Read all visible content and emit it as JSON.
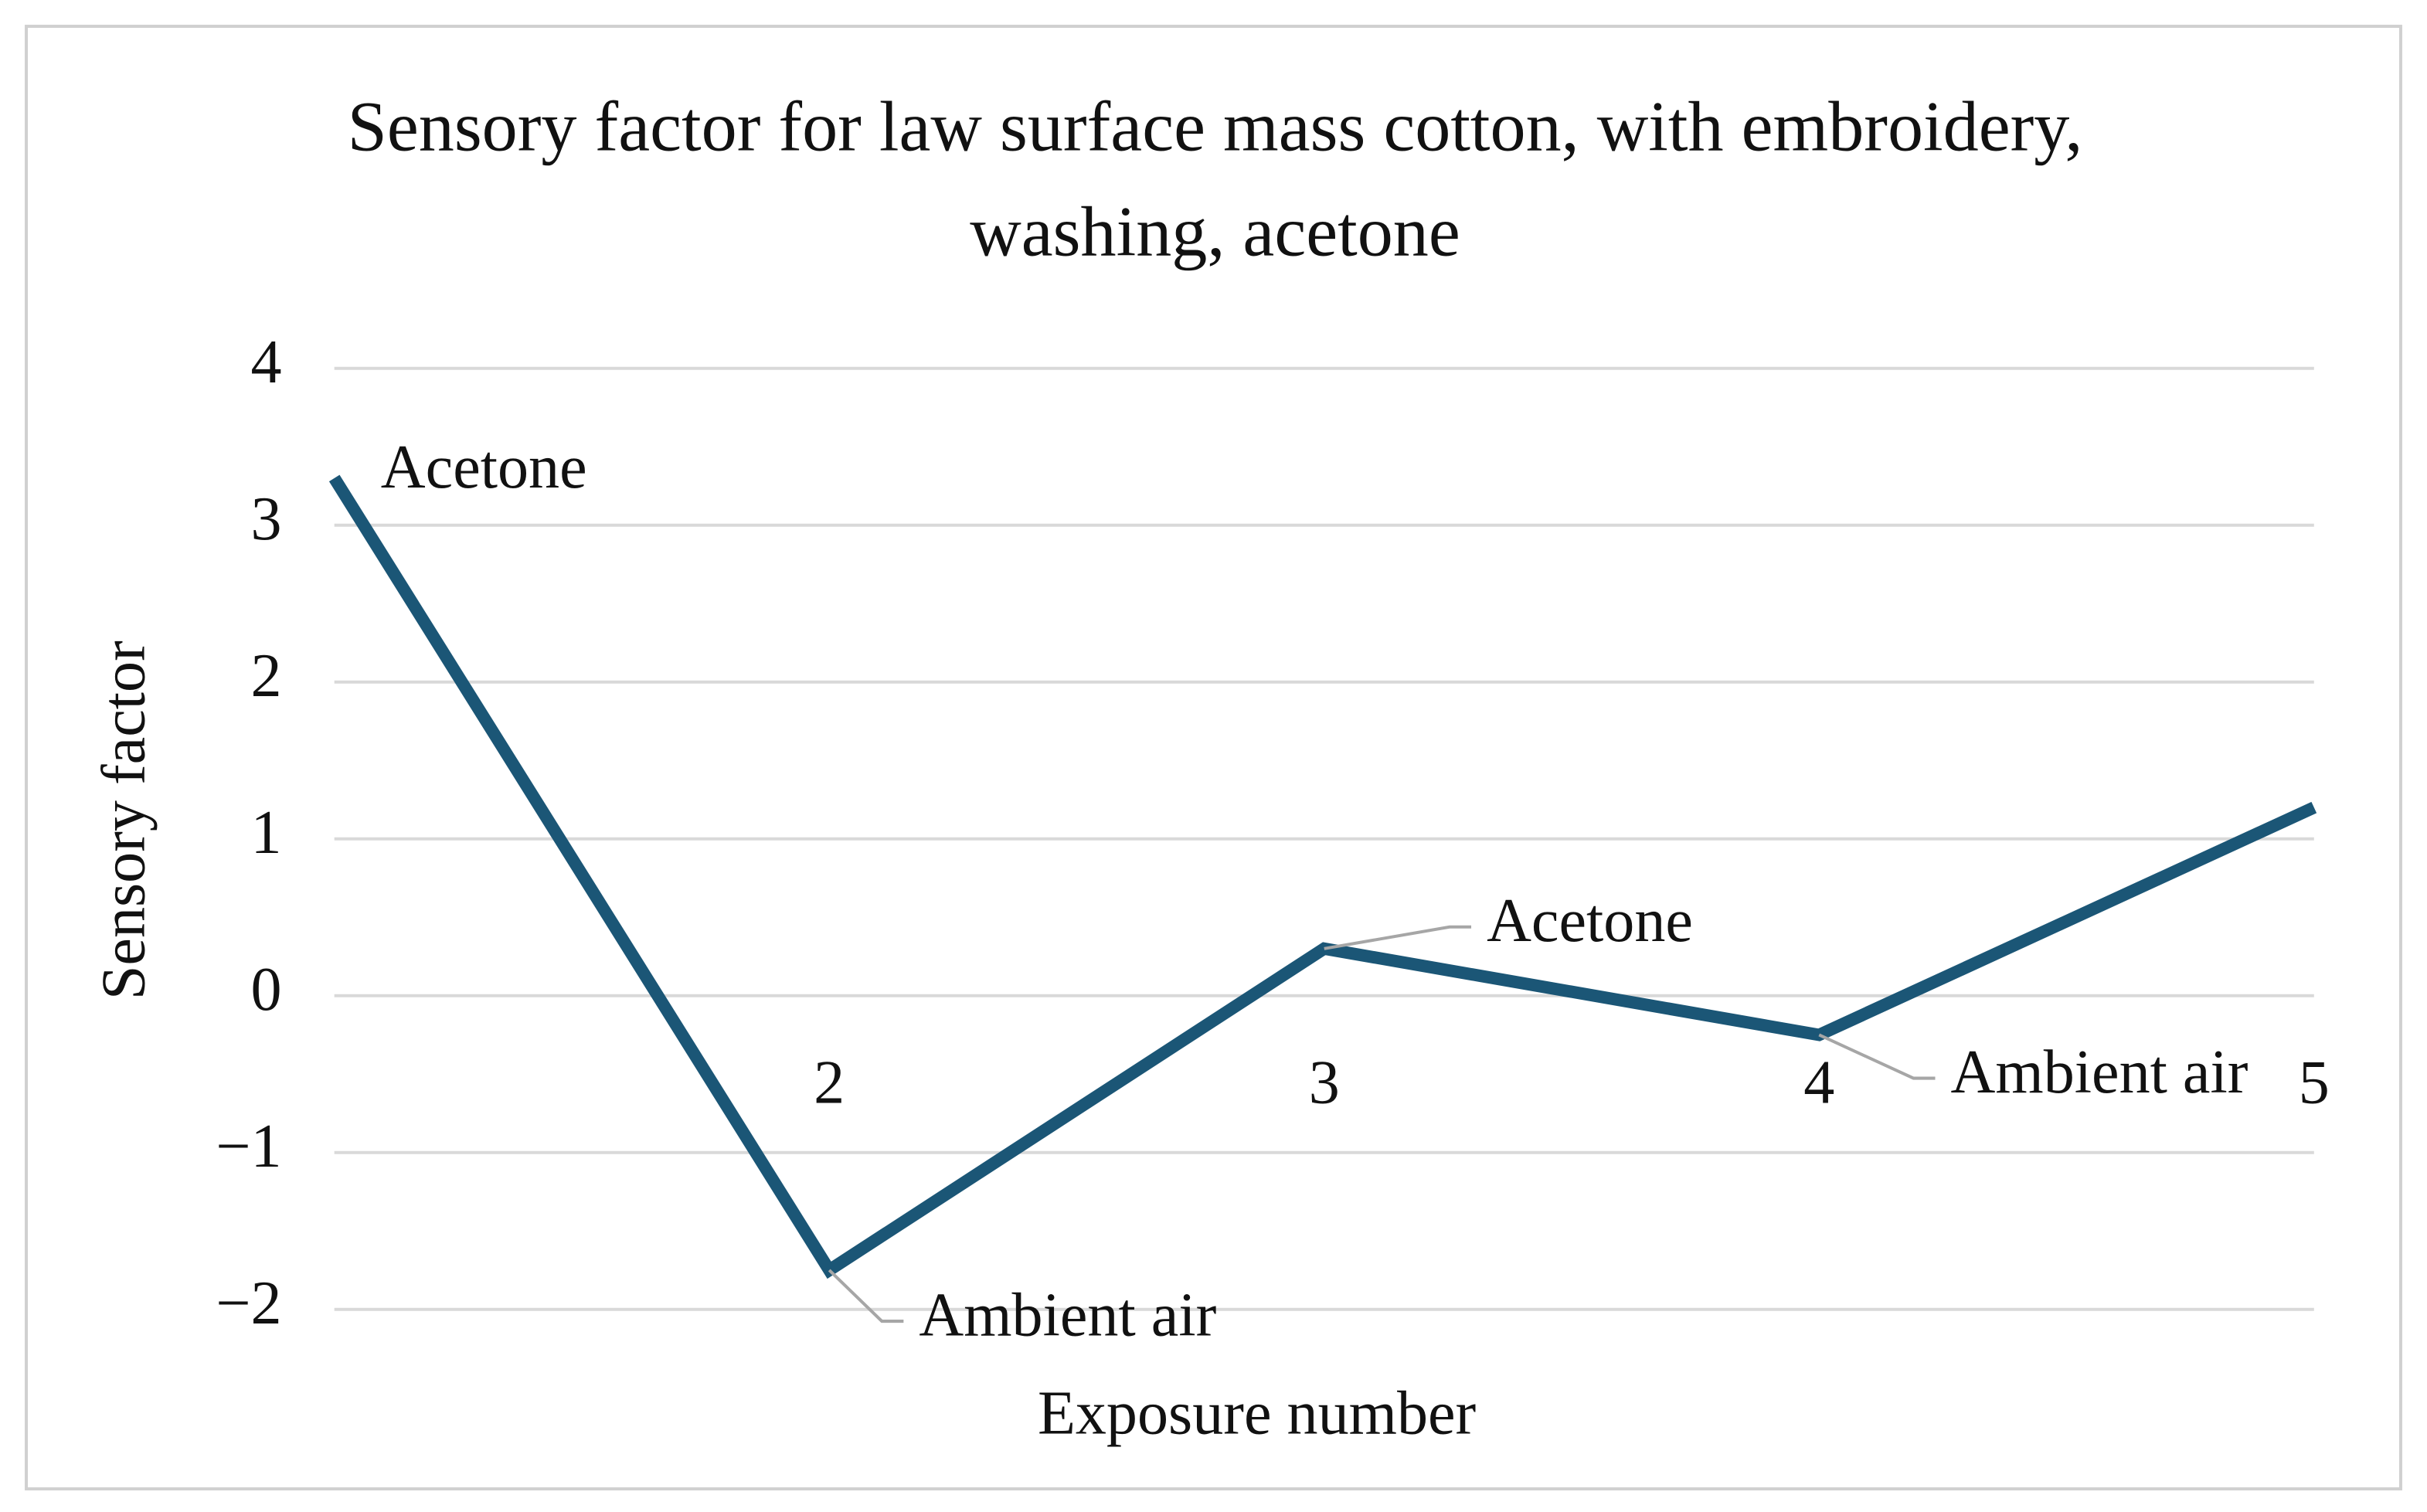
{
  "chart_data": {
    "type": "line",
    "title": "Sensory factor for law surface mass cotton, with embroidery, washing, acetone",
    "x_label": "Exposure number",
    "y_label": "Sensory factor",
    "categories": [
      null,
      "2",
      "3",
      "4",
      "5"
    ],
    "series": [
      {
        "name": "Sensory factor",
        "color": "#1b5676",
        "values": [
          3.3,
          -1.75,
          0.3,
          -0.25,
          1.2
        ]
      }
    ],
    "point_labels": [
      "Acetone",
      "Ambient air",
      "Acetone",
      "Ambient air",
      null
    ],
    "ylim": [
      -2,
      4
    ],
    "yticks": [
      {
        "value": -2,
        "label": "−2"
      },
      {
        "value": -1,
        "label": "−1"
      },
      0,
      1,
      2,
      3,
      4
    ],
    "grid": true
  }
}
